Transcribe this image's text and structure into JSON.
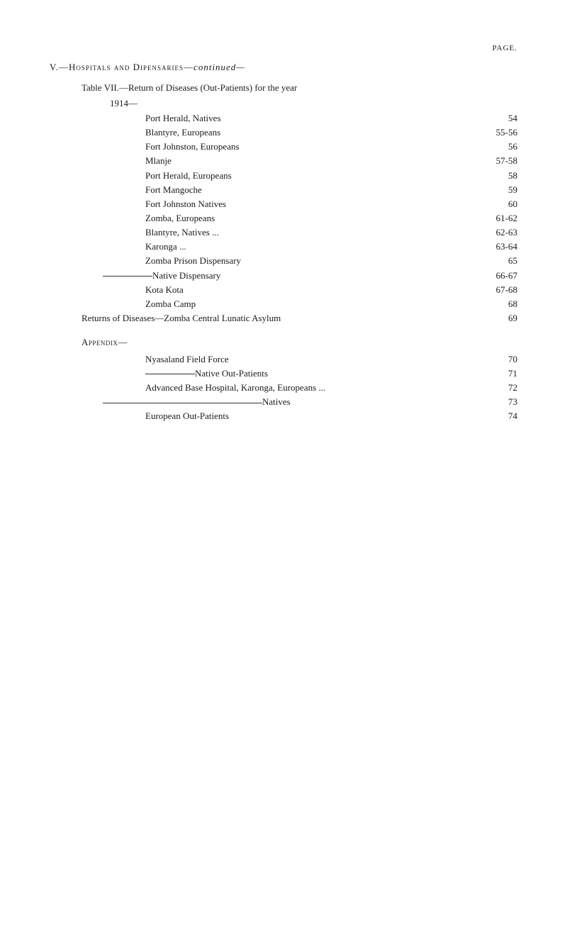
{
  "page_label": "PAGE.",
  "section_header_roman": "V.—",
  "section_header_caps": "Hospitals and Dipensaries—",
  "section_header_italic": "continued—",
  "table_title": "Table VII.—Return of Diseases (Out-Patients) for the year",
  "year": "1914—",
  "entries_main": [
    {
      "label": "Port Herald, Natives",
      "page": "54"
    },
    {
      "label": "Blantyre, Europeans",
      "page": "55-56"
    },
    {
      "label": "Fort Johnston, Europeans",
      "page": "56"
    },
    {
      "label": "Mlanje",
      "page": "57-58"
    },
    {
      "label": "Port Herald, Europeans",
      "page": "58"
    },
    {
      "label": "Fort Mangoche",
      "page": "59"
    },
    {
      "label": "Fort Johnston Natives",
      "page": "60"
    },
    {
      "label": "Zomba, Europeans",
      "page": "61-62"
    },
    {
      "label": "Blantyre, Natives ...",
      "page": "62-63"
    },
    {
      "label": "Karonga ...",
      "page": "63-64"
    },
    {
      "label": "Zomba Prison Dispensary",
      "page": "65"
    },
    {
      "label": "——— - —Native Dispensary",
      "page": "66-67",
      "leader": true
    },
    {
      "label": "Kota Kota",
      "page": "67-68"
    },
    {
      "label": "Zomba Camp",
      "page": "68"
    }
  ],
  "returns_line": {
    "label": "Returns of Diseases—Zomba Central Lunatic Asylum",
    "page": "69"
  },
  "appendix_header": "Appendix—",
  "entries_appendix": [
    {
      "label": "Nyasaland Field Force",
      "page": "70"
    },
    {
      "label": "—————Native Out-Patients",
      "page": "71",
      "leader": true
    },
    {
      "label": "Advanced Base Hospital, Karonga, Europeans ...",
      "page": "72"
    },
    {
      "label": "———————————————Natives",
      "page": "73",
      "leader": true,
      "long": true
    },
    {
      "label": "European Out-Patients",
      "page": "74"
    }
  ]
}
